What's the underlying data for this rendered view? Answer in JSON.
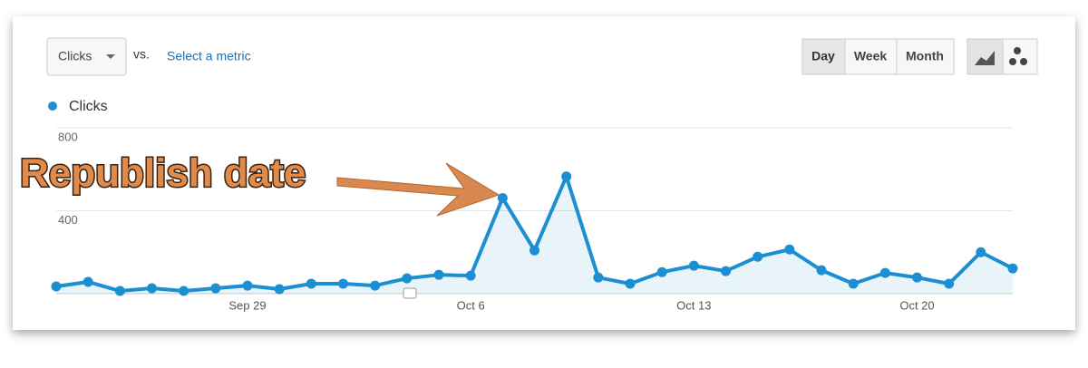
{
  "controls": {
    "metric": "Clicks",
    "vs": "vs.",
    "select_metric": "Select a metric",
    "periods": [
      "Day",
      "Week",
      "Month"
    ]
  },
  "chart_data": {
    "type": "line",
    "annotation": "Republish date",
    "categories": [
      null,
      null,
      null,
      null,
      null,
      null,
      "Sep 29",
      null,
      null,
      null,
      null,
      null,
      null,
      "Oct 6",
      null,
      null,
      null,
      null,
      null,
      null,
      "Oct 13",
      null,
      null,
      null,
      null,
      null,
      null,
      "Oct 20",
      null,
      null,
      null
    ],
    "series": [
      {
        "name": "Clicks",
        "color": "#1b8fd1",
        "values": [
          35,
          57,
          13,
          26,
          13,
          26,
          39,
          22,
          48,
          48,
          39,
          74,
          91,
          87,
          461,
          209,
          565,
          78,
          48,
          104,
          135,
          109,
          178,
          213,
          113,
          48,
          100,
          78,
          48,
          200,
          122
        ]
      }
    ],
    "ylim": [
      0,
      800
    ],
    "yticks": [
      400,
      800
    ],
    "grid": true
  }
}
